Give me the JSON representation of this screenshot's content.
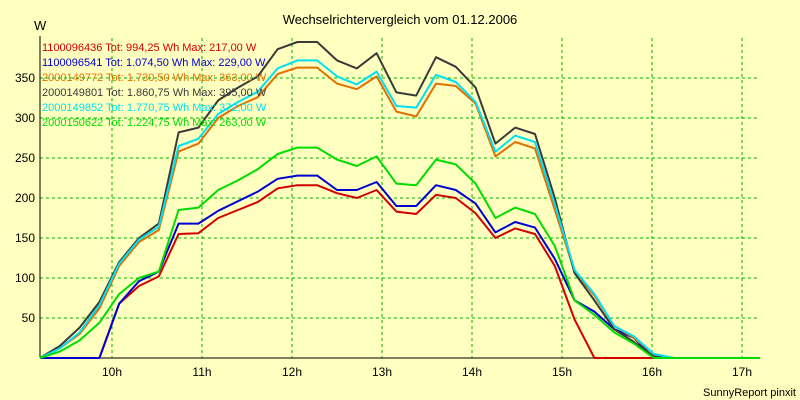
{
  "chart_data": {
    "type": "line",
    "title": "Wechselrichtervergleich vom 01.12.2006",
    "ylabel": "W",
    "xlabel": "",
    "footer": "SunnyReport pinxit",
    "ylim": [
      0,
      400
    ],
    "xlim": [
      9.2,
      17.2
    ],
    "grid": true,
    "legend_position": "top-left",
    "y_ticks": [
      50,
      100,
      150,
      200,
      250,
      300,
      350
    ],
    "x_ticks": [
      {
        "value": 10,
        "label": "10h"
      },
      {
        "value": 11,
        "label": "11h"
      },
      {
        "value": 12,
        "label": "12h"
      },
      {
        "value": 13,
        "label": "13h"
      },
      {
        "value": 14,
        "label": "14h"
      },
      {
        "value": 15,
        "label": "15h"
      },
      {
        "value": 16,
        "label": "16h"
      },
      {
        "value": 17,
        "label": "17h"
      }
    ],
    "x": [
      9.2,
      9.42,
      9.64,
      9.86,
      10.08,
      10.3,
      10.52,
      10.74,
      10.96,
      11.18,
      11.4,
      11.62,
      11.84,
      12.06,
      12.28,
      12.5,
      12.72,
      12.94,
      13.16,
      13.38,
      13.6,
      13.82,
      14.04,
      14.26,
      14.48,
      14.7,
      14.92,
      15.14,
      15.36,
      15.58,
      15.8,
      16.02,
      16.24,
      16.46,
      16.68,
      16.9,
      17.2
    ],
    "series": [
      {
        "name": "1100096436",
        "legend": "1100096436 Tot: 994,25 Wh Max: 217,00 W",
        "color": "#d40000",
        "values": [
          0,
          0,
          0,
          0,
          68,
          90,
          102,
          155,
          156,
          175,
          185,
          195,
          212,
          216,
          216,
          206,
          200,
          210,
          183,
          180,
          204,
          200,
          181,
          150,
          162,
          155,
          115,
          48,
          0,
          0,
          0,
          0,
          0,
          0,
          0,
          0,
          0
        ]
      },
      {
        "name": "1100096541",
        "legend": "1100096541 Tot: 1.074,50 Wh Max: 229,00 W",
        "color": "#0000d4",
        "values": [
          0,
          0,
          0,
          0,
          68,
          96,
          108,
          168,
          168,
          184,
          196,
          208,
          224,
          228,
          228,
          210,
          210,
          220,
          190,
          190,
          216,
          210,
          193,
          157,
          170,
          163,
          124,
          72,
          58,
          36,
          25,
          0,
          0,
          0,
          0,
          0,
          0
        ]
      },
      {
        "name": "2000149772",
        "legend": "2000149772 Tot: 1.730,50 Wh Max: 363,00 W",
        "color": "#e07000",
        "values": [
          0,
          12,
          30,
          62,
          115,
          145,
          160,
          258,
          268,
          300,
          315,
          326,
          355,
          363,
          363,
          343,
          336,
          352,
          308,
          302,
          343,
          340,
          318,
          252,
          270,
          262,
          185,
          108,
          78,
          40,
          25,
          5,
          0,
          0,
          0,
          0,
          0
        ]
      },
      {
        "name": "2000149801",
        "legend": "2000149801 Tot: 1.860,75 Wh Max: 395,00 W",
        "color": "#3a3a3a",
        "values": [
          0,
          15,
          38,
          70,
          120,
          150,
          168,
          282,
          288,
          322,
          338,
          352,
          386,
          395,
          395,
          372,
          362,
          381,
          332,
          328,
          376,
          364,
          338,
          268,
          288,
          280,
          200,
          106,
          72,
          36,
          20,
          2,
          0,
          0,
          0,
          0,
          0
        ]
      },
      {
        "name": "2000149852",
        "legend": "2000149852 Tot: 1.770,75 Wh Max: 372,00 W",
        "color": "#00e0f0",
        "values": [
          0,
          12,
          32,
          66,
          118,
          148,
          164,
          265,
          274,
          305,
          320,
          333,
          362,
          372,
          372,
          352,
          342,
          358,
          315,
          313,
          354,
          345,
          320,
          258,
          278,
          270,
          192,
          110,
          80,
          40,
          27,
          5,
          0,
          0,
          0,
          0,
          0
        ]
      },
      {
        "name": "2000150622",
        "legend": "2000150622 Tot: 1.224,75 Wh Max: 263,00 W",
        "color": "#00dc00",
        "values": [
          0,
          8,
          22,
          44,
          80,
          100,
          108,
          185,
          188,
          210,
          222,
          236,
          255,
          263,
          263,
          248,
          240,
          252,
          218,
          216,
          248,
          242,
          218,
          175,
          188,
          180,
          140,
          72,
          54,
          32,
          18,
          0,
          0,
          0,
          0,
          0,
          0
        ]
      }
    ]
  }
}
